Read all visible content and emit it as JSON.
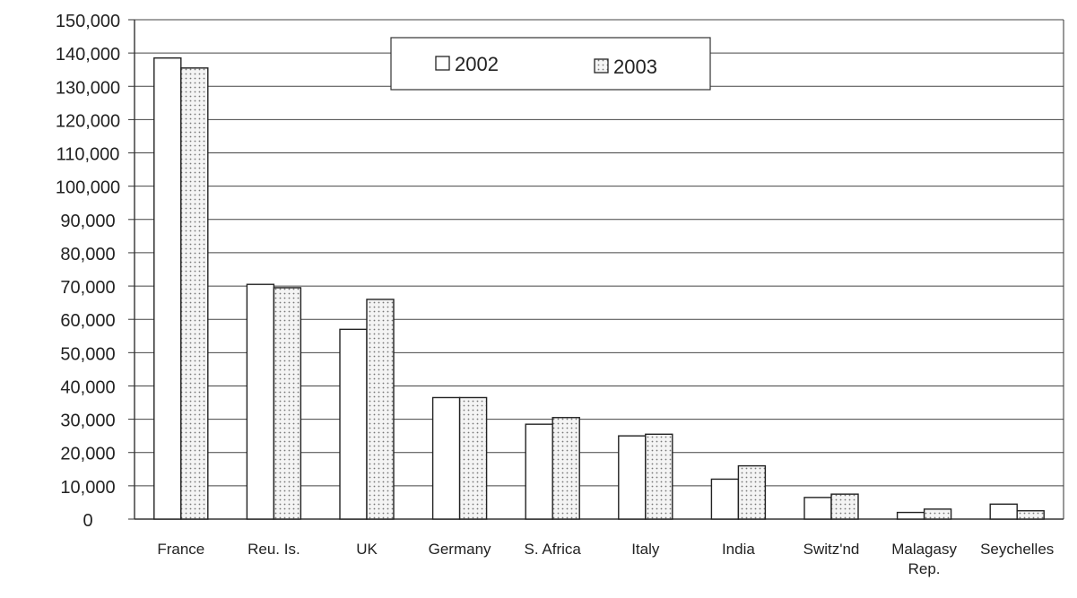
{
  "chart_data": {
    "type": "bar",
    "title": "",
    "xlabel": "",
    "ylabel": "",
    "ylim": [
      0,
      150000
    ],
    "yticks": [
      "0",
      "10,000",
      "20,000",
      "30,000",
      "40,000",
      "50,000",
      "60,000",
      "70,000",
      "80,000",
      "90,000",
      "100,000",
      "110,000",
      "120,000",
      "130,000",
      "140,000",
      "150,000"
    ],
    "categories": [
      "France",
      "Reu. Is.",
      "UK",
      "Germany",
      "S. Africa",
      "Italy",
      "India",
      "Switz'nd",
      "Malagasy Rep.",
      "Seychelles"
    ],
    "series": [
      {
        "name": "2002",
        "values": [
          138500,
          70500,
          57000,
          36500,
          28500,
          25000,
          12000,
          6500,
          2000,
          4500
        ]
      },
      {
        "name": "2003",
        "values": [
          135500,
          69500,
          66000,
          36500,
          30500,
          25500,
          16000,
          7500,
          3000,
          2500
        ]
      }
    ],
    "grid": true,
    "legend_position": "top",
    "colors": {
      "series_2002_fill": "#ffffff",
      "series_2003_fill": "#f2f2f2",
      "stroke": "#222222",
      "dot": "#777777"
    }
  }
}
